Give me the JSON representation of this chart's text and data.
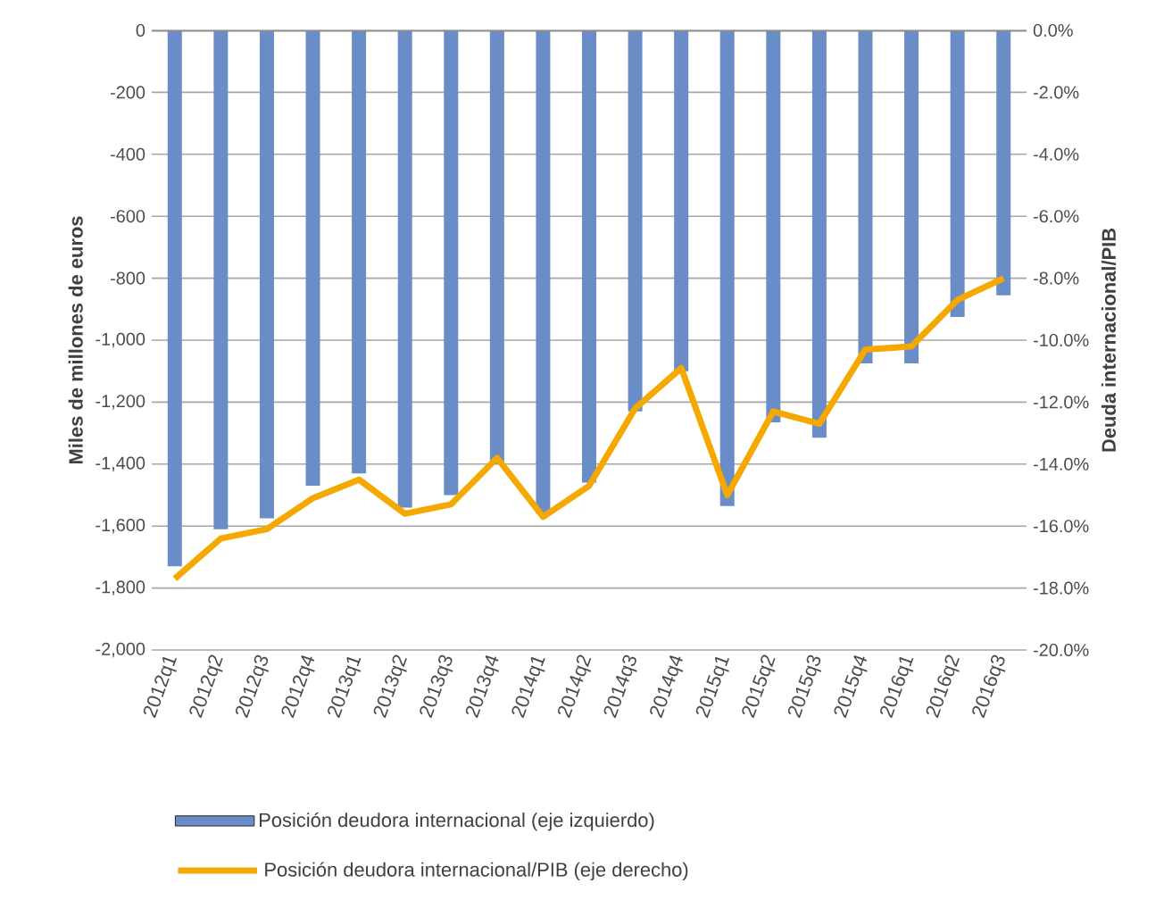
{
  "chart_data": {
    "type": "bar",
    "categories": [
      "2012q1",
      "2012q2",
      "2012q3",
      "2012q4",
      "2013q1",
      "2013q2",
      "2013q3",
      "2013q4",
      "2014q1",
      "2014q2",
      "2014q3",
      "2014q4",
      "2015q1",
      "2015q2",
      "2015q3",
      "2015q4",
      "2016q1",
      "2016q2",
      "2016q3"
    ],
    "series": [
      {
        "name": "Posición deudora internacional (eje izquierdo)",
        "color": "#6a8cc7",
        "values": [
          -1730,
          -1610,
          -1575,
          -1470,
          -1430,
          -1540,
          -1500,
          -1400,
          -1560,
          -1460,
          -1230,
          -1100,
          -1535,
          -1265,
          -1315,
          -1075,
          -1075,
          -925,
          -855
        ]
      },
      {
        "name": "Posición deudora internacional/PIB (eje derecho)",
        "type": "line",
        "axis": "y2",
        "color": "#f5a800",
        "values": [
          -17.7,
          -16.4,
          -16.1,
          -15.1,
          -14.5,
          -15.6,
          -15.3,
          -13.8,
          -15.7,
          -14.7,
          -12.2,
          -10.9,
          -15.0,
          -12.3,
          -12.7,
          -10.3,
          -10.2,
          -8.7,
          -8.0
        ]
      }
    ],
    "ylabel": "Miles de millones de euros",
    "y2label": "Deuda internacional/PIB",
    "ylim": [
      -2000,
      0
    ],
    "yticks": [
      {
        "value": -2000,
        "label": "-2,000"
      },
      {
        "value": -1800,
        "label": "-1,800"
      },
      {
        "value": -1600,
        "label": "-1,600"
      },
      {
        "value": -1400,
        "label": "-1,400"
      },
      {
        "value": -1200,
        "label": "-1,200"
      },
      {
        "value": -1000,
        "label": "-1,000"
      },
      -800,
      -600,
      -400,
      -200,
      0
    ],
    "y2lim": [
      -20,
      0
    ],
    "y2ticks": [
      {
        "value": -20,
        "label": "-20.0%"
      },
      {
        "value": -18,
        "label": "-18.0%"
      },
      {
        "value": -16,
        "label": "-16.0%"
      },
      {
        "value": -14,
        "label": "-14.0%"
      },
      {
        "value": -12,
        "label": "-12.0%"
      },
      {
        "value": -10,
        "label": "-10.0%"
      },
      {
        "value": -8,
        "label": "-8.0%"
      },
      {
        "value": -6,
        "label": "-6.0%"
      },
      {
        "value": -4,
        "label": "-4.0%"
      },
      {
        "value": -2,
        "label": "-2.0%"
      },
      {
        "value": 0,
        "label": "0.0%"
      }
    ],
    "grid": "y",
    "legend": "bottom"
  }
}
